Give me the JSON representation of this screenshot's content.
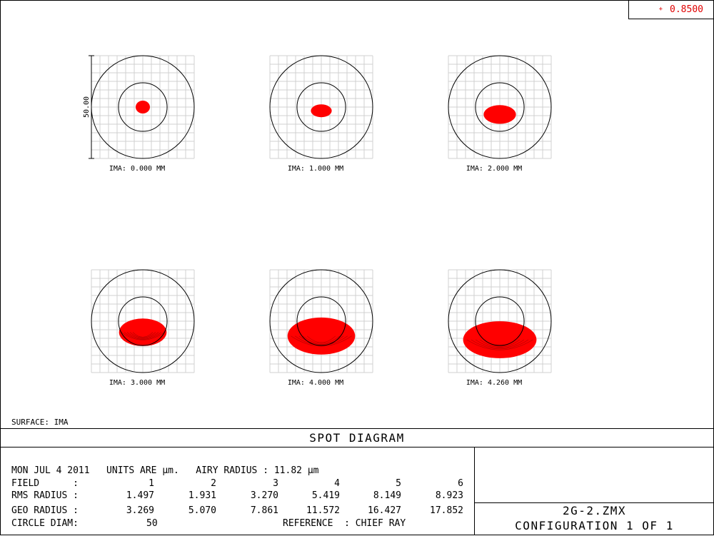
{
  "wavelength": {
    "marker": "+",
    "value": "0.8500"
  },
  "scale_bar_label": "50.00",
  "surface_label": "SURFACE: IMA",
  "title": "SPOT DIAGRAM",
  "info": {
    "header": "MON JUL 4 2011   UNITS ARE µm.   AIRY RADIUS : 11.82 µm",
    "field_label": "FIELD      :",
    "rms_label": "RMS RADIUS :",
    "geo_label": "GEO RADIUS :",
    "circle_label": "CIRCLE DIAM:",
    "circle_value": "50",
    "reference": "REFERENCE  : CHIEF RAY"
  },
  "file_name": "2G-2.ZMX",
  "configuration": "CONFIGURATION  1  OF  1",
  "accent_color": "#ff0000",
  "chart_data": {
    "type": "scatter",
    "title": "SPOT DIAGRAM",
    "units": "µm",
    "airy_radius": 11.82,
    "circle_diam": 50,
    "wavelength": 0.85,
    "fields": [
      {
        "field": "1",
        "label": "IMA: 0.000 MM",
        "rms_radius": "1.497",
        "geo_radius": "3.269"
      },
      {
        "field": "2",
        "label": "IMA: 1.000 MM",
        "rms_radius": "1.931",
        "geo_radius": "5.070"
      },
      {
        "field": "3",
        "label": "IMA: 2.000 MM",
        "rms_radius": "3.270",
        "geo_radius": "7.861"
      },
      {
        "field": "4",
        "label": "IMA: 3.000 MM",
        "rms_radius": "5.419",
        "geo_radius": "11.572"
      },
      {
        "field": "5",
        "label": "IMA: 4.000 MM",
        "rms_radius": "8.149",
        "geo_radius": "16.427"
      },
      {
        "field": "6",
        "label": "IMA: 4.260 MM",
        "rms_radius": "8.923",
        "geo_radius": "17.852"
      }
    ]
  }
}
